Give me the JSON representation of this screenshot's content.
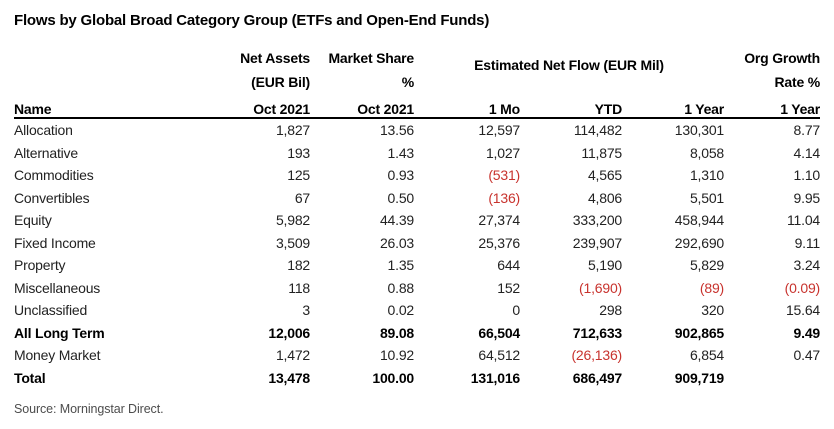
{
  "title": "Flows by Global Broad Category Group (ETFs and Open-End Funds)",
  "source_note": "Source: Morningstar Direct.",
  "colors": {
    "negative_value": "#c8332e",
    "text": "#222222",
    "header_rule": "#000000"
  },
  "table": {
    "group_header": "Estimated Net Flow (EUR Mil)",
    "columns": [
      {
        "id": "name",
        "label": "Name"
      },
      {
        "id": "net_assets",
        "lines": [
          "Net Assets",
          "(EUR Bil)",
          "Oct 2021"
        ]
      },
      {
        "id": "market_share",
        "lines": [
          "Market Share",
          "%",
          "Oct 2021"
        ]
      },
      {
        "id": "flow_1mo",
        "label": "1 Mo"
      },
      {
        "id": "flow_ytd",
        "label": "YTD"
      },
      {
        "id": "flow_1year",
        "label": "1 Year"
      },
      {
        "id": "org_growth",
        "lines": [
          "Org Growth",
          "Rate %",
          "1 Year"
        ]
      }
    ],
    "rows": [
      {
        "name": "Allocation",
        "bold": false,
        "values": [
          "1,827",
          "13.56",
          "12,597",
          "114,482",
          "130,301",
          "8.77"
        ]
      },
      {
        "name": "Alternative",
        "bold": false,
        "values": [
          "193",
          "1.43",
          "1,027",
          "11,875",
          "8,058",
          "4.14"
        ]
      },
      {
        "name": "Commodities",
        "bold": false,
        "values": [
          "125",
          "0.93",
          "(531)",
          "4,565",
          "1,310",
          "1.10"
        ]
      },
      {
        "name": "Convertibles",
        "bold": false,
        "values": [
          "67",
          "0.50",
          "(136)",
          "4,806",
          "5,501",
          "9.95"
        ]
      },
      {
        "name": "Equity",
        "bold": false,
        "values": [
          "5,982",
          "44.39",
          "27,374",
          "333,200",
          "458,944",
          "11.04"
        ]
      },
      {
        "name": "Fixed Income",
        "bold": false,
        "values": [
          "3,509",
          "26.03",
          "25,376",
          "239,907",
          "292,690",
          "9.11"
        ]
      },
      {
        "name": "Property",
        "bold": false,
        "values": [
          "182",
          "1.35",
          "644",
          "5,190",
          "5,829",
          "3.24"
        ]
      },
      {
        "name": "Miscellaneous",
        "bold": false,
        "values": [
          "118",
          "0.88",
          "152",
          "(1,690)",
          "(89)",
          "(0.09)"
        ]
      },
      {
        "name": "Unclassified",
        "bold": false,
        "values": [
          "3",
          "0.02",
          "0",
          "298",
          "320",
          "15.64"
        ]
      },
      {
        "name": "All Long Term",
        "bold": true,
        "values": [
          "12,006",
          "89.08",
          "66,504",
          "712,633",
          "902,865",
          "9.49"
        ]
      },
      {
        "name": "Money Market",
        "bold": false,
        "values": [
          "1,472",
          "10.92",
          "64,512",
          "(26,136)",
          "6,854",
          "0.47"
        ]
      },
      {
        "name": "Total",
        "bold": true,
        "values": [
          "13,478",
          "100.00",
          "131,016",
          "686,497",
          "909,719",
          ""
        ]
      }
    ]
  }
}
